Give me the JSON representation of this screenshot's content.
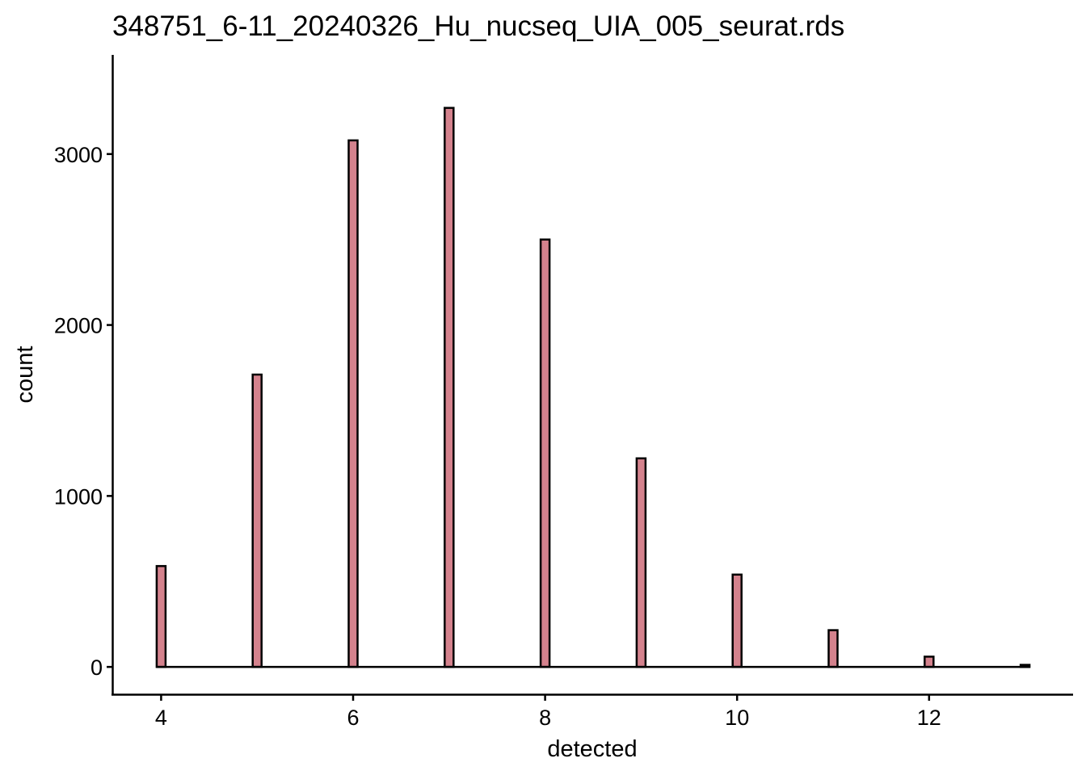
{
  "chart_data": {
    "type": "bar",
    "title": "348751_6-11_20240326_Hu_nucseq_UIA_005_seurat.rds",
    "xlabel": "detected",
    "ylabel": "count",
    "x": [
      4,
      5,
      6,
      7,
      8,
      9,
      10,
      11,
      12,
      13
    ],
    "values": [
      590,
      1710,
      3080,
      3270,
      2500,
      1220,
      540,
      215,
      60,
      12
    ],
    "xlim": [
      3.5,
      13.5
    ],
    "ylim": [
      -160,
      3580
    ],
    "xticks": [
      4,
      6,
      8,
      10,
      12
    ],
    "xtick_labels": [
      "4",
      "6",
      "8",
      "10",
      "12"
    ],
    "yticks": [
      0,
      1000,
      2000,
      3000
    ],
    "ytick_labels": [
      "0",
      "1000",
      "2000",
      "3000"
    ],
    "grid": false,
    "legend": "none",
    "colors": {
      "bar_fill": "#d4828d",
      "bar_stroke": "#000000",
      "axis": "#000000"
    }
  }
}
